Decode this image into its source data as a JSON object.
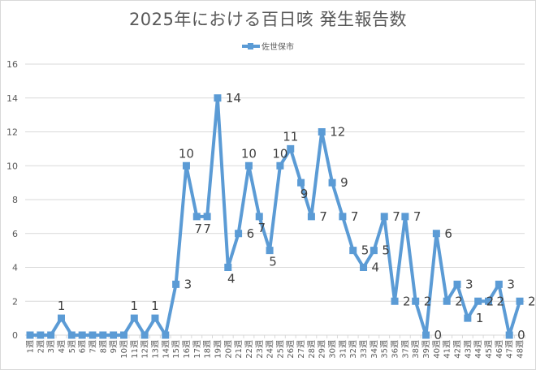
{
  "chart_data": {
    "type": "line",
    "title": "2025年における百日咳 発生報告数",
    "xlabel": "",
    "ylabel": "",
    "ylim": [
      0,
      16
    ],
    "yticks": [
      0,
      2,
      4,
      6,
      8,
      10,
      12,
      14,
      16
    ],
    "grid": true,
    "legend_position": "top",
    "categories": [
      "1週",
      "2週",
      "3週",
      "4週",
      "5週",
      "6週",
      "7週",
      "8週",
      "9週",
      "10週",
      "11週",
      "12週",
      "13週",
      "14週",
      "15週",
      "16週",
      "17週",
      "18週",
      "19週",
      "20週",
      "21週",
      "22週",
      "23週",
      "24週",
      "25週",
      "26週",
      "27週",
      "28週",
      "29週",
      "30週",
      "31週",
      "32週",
      "33週",
      "34週",
      "35週",
      "36週",
      "37週",
      "38週",
      "39週",
      "40週",
      "41週",
      "42週",
      "43週",
      "44週",
      "45週",
      "46週",
      "47週",
      "48週"
    ],
    "series": [
      {
        "name": "佐世保市",
        "color": "#5b9bd5",
        "values": [
          0,
          0,
          0,
          1,
          0,
          0,
          0,
          0,
          0,
          0,
          1,
          0,
          1,
          0,
          3,
          10,
          7,
          7,
          14,
          4,
          6,
          10,
          7,
          5,
          10,
          11,
          9,
          7,
          12,
          9,
          7,
          5,
          4,
          5,
          7,
          2,
          7,
          2,
          0,
          6,
          2,
          3,
          1,
          2,
          2,
          3,
          0,
          2
        ],
        "data_labels_shown": [
          false,
          false,
          false,
          true,
          false,
          false,
          false,
          false,
          false,
          false,
          true,
          false,
          true,
          false,
          true,
          true,
          true,
          true,
          true,
          true,
          true,
          true,
          true,
          true,
          true,
          true,
          true,
          true,
          true,
          true,
          true,
          true,
          true,
          true,
          true,
          true,
          true,
          true,
          true,
          true,
          true,
          true,
          true,
          true,
          true,
          true,
          true,
          true
        ]
      }
    ]
  }
}
